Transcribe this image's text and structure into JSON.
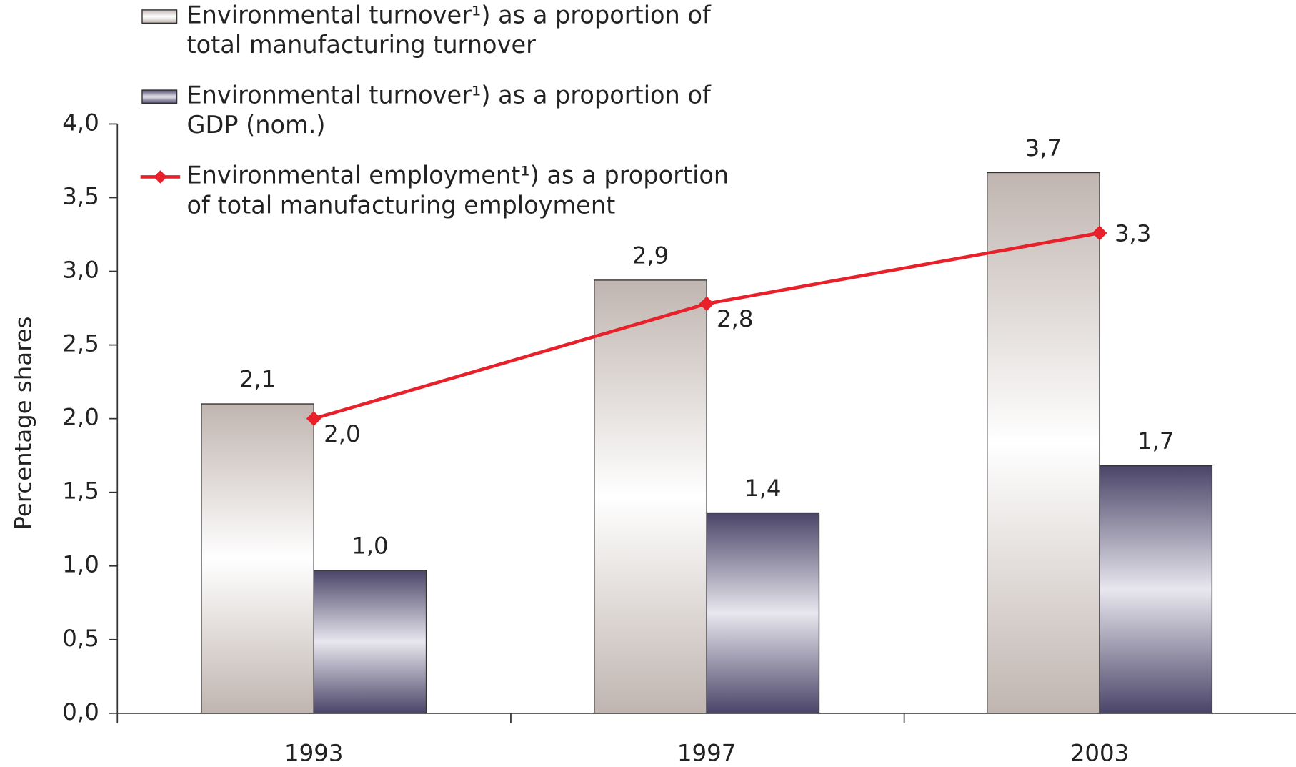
{
  "chart_data": {
    "type": "bar",
    "y_label": "Percentage shares",
    "categories": [
      "1993",
      "1997",
      "2003"
    ],
    "series": [
      {
        "name": "Environmental turnover¹) as a proportion of total manufacturing turnover",
        "type": "bar",
        "color": "#c0b5b0",
        "values": [
          2.1,
          2.94,
          3.67
        ],
        "value_labels": [
          "2,1",
          "2,9",
          "3,7"
        ]
      },
      {
        "name": "Environmental turnover¹) as a proportion of GDP (nom.)",
        "type": "bar",
        "color": "#4a4568",
        "values": [
          0.97,
          1.36,
          1.68
        ],
        "value_labels": [
          "1,0",
          "1,4",
          "1,7"
        ]
      },
      {
        "name": "Environmental employment¹) as a proportion of total manufacturing employment",
        "type": "line",
        "color": "#e8202a",
        "values": [
          2.0,
          2.78,
          3.26
        ],
        "value_labels": [
          "2,0",
          "2,8",
          "3,3"
        ]
      }
    ],
    "ylim": [
      0,
      4
    ],
    "yticks": [
      {
        "value": 0,
        "label": "0,0"
      },
      {
        "value": 0.5,
        "label": "0,5"
      },
      {
        "value": 1,
        "label": "1,0"
      },
      {
        "value": 1.5,
        "label": "1,5"
      },
      {
        "value": 2,
        "label": "2,0"
      },
      {
        "value": 2.5,
        "label": "2,5"
      },
      {
        "value": 3,
        "label": "3,0"
      },
      {
        "value": 3.5,
        "label": "3,5"
      },
      {
        "value": 4,
        "label": "4,0"
      }
    ],
    "grid": false
  }
}
